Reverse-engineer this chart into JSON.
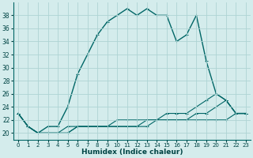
{
  "x": [
    0,
    1,
    2,
    3,
    4,
    5,
    6,
    7,
    8,
    9,
    10,
    11,
    12,
    13,
    14,
    15,
    16,
    17,
    18,
    19,
    20,
    21,
    22,
    23
  ],
  "y_main": [
    23,
    21,
    20,
    21,
    21,
    24,
    29,
    32,
    35,
    37,
    38,
    39,
    38,
    39,
    38,
    38,
    34,
    35,
    38,
    31,
    26,
    25,
    23,
    23
  ],
  "y_low1": [
    23,
    21,
    20,
    20,
    20,
    20,
    21,
    21,
    21,
    21,
    21,
    21,
    21,
    21,
    22,
    22,
    22,
    22,
    22,
    22,
    22,
    22,
    23,
    23
  ],
  "y_low2": [
    23,
    21,
    20,
    20,
    20,
    20,
    21,
    21,
    21,
    21,
    21,
    21,
    21,
    22,
    22,
    22,
    22,
    22,
    23,
    23,
    24,
    25,
    23,
    23
  ],
  "y_low3": [
    23,
    21,
    20,
    20,
    20,
    21,
    21,
    21,
    21,
    21,
    22,
    22,
    22,
    22,
    22,
    23,
    23,
    23,
    24,
    25,
    26,
    25,
    23,
    23
  ],
  "line_color": "#006666",
  "bg_color": "#d4ecec",
  "grid_color": "#aed4d4",
  "xlabel": "Humidex (Indice chaleur)",
  "ylim": [
    19,
    40
  ],
  "xlim": [
    -0.5,
    23.5
  ],
  "yticks": [
    20,
    22,
    24,
    26,
    28,
    30,
    32,
    34,
    36,
    38
  ],
  "xticks": [
    0,
    1,
    2,
    3,
    4,
    5,
    6,
    7,
    8,
    9,
    10,
    11,
    12,
    13,
    14,
    15,
    16,
    17,
    18,
    19,
    20,
    21,
    22,
    23
  ]
}
